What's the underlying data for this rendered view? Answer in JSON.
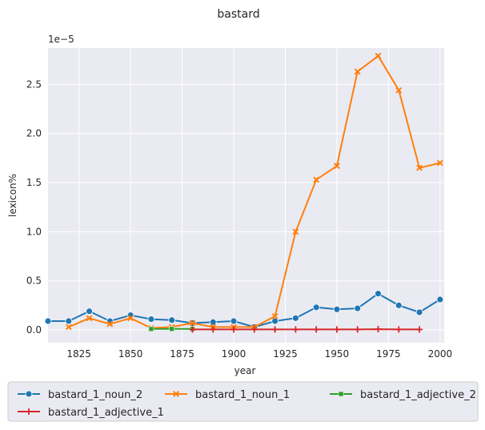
{
  "chart_data": {
    "type": "line",
    "title": "bastard",
    "xlabel": "year",
    "ylabel": "lexicon%",
    "y_offset_label": "1e−5",
    "xlim": [
      1810,
      2002
    ],
    "ylim": [
      -0.13,
      2.87
    ],
    "y_scale": "1e-5",
    "x_ticks": [
      1825,
      1850,
      1875,
      1900,
      1925,
      1950,
      1975,
      2000
    ],
    "y_ticks": [
      0.0,
      0.5,
      1.0,
      1.5,
      2.0,
      2.5
    ],
    "x_tick_labels": [
      "1825",
      "1850",
      "1875",
      "1900",
      "1925",
      "1950",
      "1975",
      "2000"
    ],
    "y_tick_labels": [
      "0.0",
      "0.5",
      "1.0",
      "1.5",
      "2.0",
      "2.5"
    ],
    "grid": true,
    "legend_position": "bottom",
    "series": [
      {
        "name": "bastard_1_noun_2",
        "color": "#1f77b4",
        "marker": "circle",
        "x": [
          1810,
          1820,
          1830,
          1840,
          1850,
          1860,
          1870,
          1880,
          1890,
          1900,
          1910,
          1920,
          1930,
          1940,
          1950,
          1960,
          1970,
          1980,
          1990,
          2000
        ],
        "y": [
          0.09,
          0.09,
          0.19,
          0.09,
          0.15,
          0.11,
          0.1,
          0.07,
          0.08,
          0.09,
          0.03,
          0.09,
          0.12,
          0.23,
          0.21,
          0.22,
          0.37,
          0.25,
          0.18,
          0.31
        ]
      },
      {
        "name": "bastard_1_noun_1",
        "color": "#ff7f0e",
        "marker": "x",
        "x": [
          1820,
          1830,
          1840,
          1850,
          1860,
          1870,
          1880,
          1890,
          1900,
          1910,
          1920,
          1930,
          1940,
          1950,
          1960,
          1970,
          1980,
          1990,
          2000
        ],
        "y": [
          0.03,
          0.12,
          0.06,
          0.12,
          0.02,
          0.03,
          0.07,
          0.03,
          0.03,
          0.03,
          0.14,
          1.0,
          1.53,
          1.67,
          2.63,
          2.79,
          2.44,
          1.65,
          1.7
        ]
      },
      {
        "name": "bastard_1_adjective_2",
        "color": "#2ca02c",
        "marker": "square",
        "x": [
          1860,
          1870,
          1880
        ],
        "y": [
          0.01,
          0.01,
          0.01
        ]
      },
      {
        "name": "bastard_1_adjective_1",
        "color": "#d62728",
        "marker": "plus",
        "x": [
          1880,
          1890,
          1900,
          1910,
          1920,
          1930,
          1940,
          1950,
          1960,
          1970,
          1980,
          1990
        ],
        "y": [
          0.005,
          0.005,
          0.005,
          0.005,
          0.005,
          0.005,
          0.005,
          0.005,
          0.005,
          0.008,
          0.005,
          0.005
        ]
      }
    ]
  }
}
